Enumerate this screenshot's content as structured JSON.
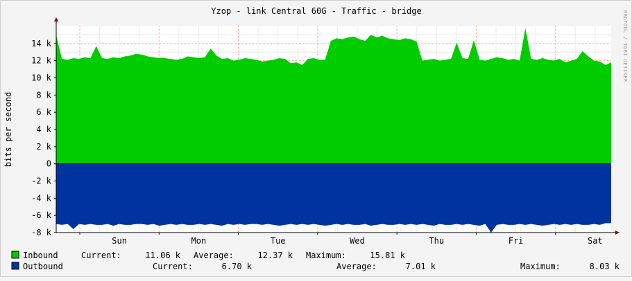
{
  "chart_data": {
    "type": "area",
    "title": "Yzop - link Central 60G - Traffic - bridge",
    "ylabel": "bits per second",
    "watermark": "RRDTOOL / TOBI OETIKER",
    "ylim": [
      -8000,
      16000
    ],
    "yticks": [
      {
        "value": 14000,
        "label": "14 k"
      },
      {
        "value": 12000,
        "label": "12 k"
      },
      {
        "value": 10000,
        "label": "10 k"
      },
      {
        "value": 8000,
        "label": "8 k"
      },
      {
        "value": 6000,
        "label": "6 k"
      },
      {
        "value": 4000,
        "label": "4 k"
      },
      {
        "value": 2000,
        "label": "2 k"
      },
      {
        "value": 0,
        "label": "0"
      },
      {
        "value": -2000,
        "label": "-2 k"
      },
      {
        "value": -4000,
        "label": "-4 k"
      },
      {
        "value": -6000,
        "label": "-6 k"
      },
      {
        "value": -8000,
        "label": "-8 k"
      }
    ],
    "day_labels": [
      "Sun",
      "Mon",
      "Tue",
      "Wed",
      "Thu",
      "Fri",
      "Sat"
    ],
    "grid": true,
    "colors": {
      "inbound": "#00cc00",
      "outbound": "#0033a0",
      "grid": "#ff9a9a",
      "axis": "#000000",
      "zero": "#000000"
    },
    "series": [
      {
        "name": "Inbound",
        "color": "#00cc00",
        "values": [
          15000,
          12200,
          12100,
          12300,
          12200,
          12400,
          12300,
          13700,
          12300,
          12200,
          12400,
          12300,
          12500,
          12600,
          12800,
          12700,
          12500,
          12400,
          12300,
          12300,
          12200,
          12100,
          12200,
          12500,
          12400,
          12300,
          12400,
          13400,
          12600,
          12200,
          12300,
          12000,
          12100,
          12300,
          12200,
          12100,
          11900,
          12000,
          12100,
          12300,
          12200,
          11700,
          11800,
          11500,
          12200,
          12300,
          12100,
          12100,
          14300,
          14600,
          14500,
          14700,
          14800,
          14500,
          14300,
          15000,
          14700,
          14900,
          14600,
          14500,
          14400,
          14600,
          14500,
          14200,
          12000,
          12100,
          12200,
          12000,
          12100,
          12200,
          14100,
          12300,
          12200,
          14400,
          12100,
          12000,
          12200,
          12400,
          12300,
          12100,
          12200,
          12000,
          15800,
          12200,
          12100,
          12300,
          12100,
          12000,
          12200,
          11800,
          12000,
          12200,
          13100,
          12500,
          12000,
          11900,
          11500,
          11800
        ]
      },
      {
        "name": "Outbound",
        "color": "#0033a0",
        "values": [
          -7000,
          -7100,
          -7000,
          -7600,
          -7000,
          -7100,
          -7000,
          -7100,
          -7100,
          -7000,
          -7200,
          -7000,
          -7100,
          -7100,
          -7000,
          -7000,
          -7100,
          -7000,
          -7200,
          -7100,
          -7000,
          -7100,
          -7000,
          -7100,
          -7100,
          -7000,
          -7100,
          -7000,
          -7100,
          -7200,
          -7000,
          -7100,
          -7000,
          -7100,
          -7000,
          -7000,
          -7100,
          -7000,
          -7100,
          -7200,
          -7100,
          -7000,
          -7100,
          -7000,
          -7100,
          -7000,
          -7100,
          -7200,
          -7100,
          -7000,
          -7100,
          -7000,
          -7100,
          -7100,
          -7000,
          -7200,
          -7100,
          -7000,
          -7100,
          -7100,
          -7000,
          -7100,
          -7000,
          -7100,
          -7000,
          -7100,
          -7200,
          -7000,
          -7100,
          -7100,
          -7000,
          -7100,
          -7000,
          -7100,
          -7200,
          -7000,
          -8000,
          -7100,
          -7000,
          -7100,
          -7100,
          -7000,
          -7100,
          -7000,
          -7100,
          -7200,
          -7100,
          -7000,
          -7100,
          -7000,
          -7100,
          -7000,
          -7100,
          -7100,
          -7000,
          -7100,
          -6900,
          -6900
        ]
      }
    ]
  },
  "legend": [
    {
      "name": "Inbound",
      "color": "#00cc00",
      "current_label": "Current:",
      "current": "11.06 k",
      "average_label": "Average:",
      "average": "12.37 k",
      "maximum_label": "Maximum:",
      "maximum": "15.81 k"
    },
    {
      "name": "Outbound",
      "color": "#0033a0",
      "current_label": "Current:",
      "current": "6.70 k",
      "average_label": "Average:",
      "average": "7.01 k",
      "maximum_label": "Maximum:",
      "maximum": "8.03 k"
    }
  ]
}
